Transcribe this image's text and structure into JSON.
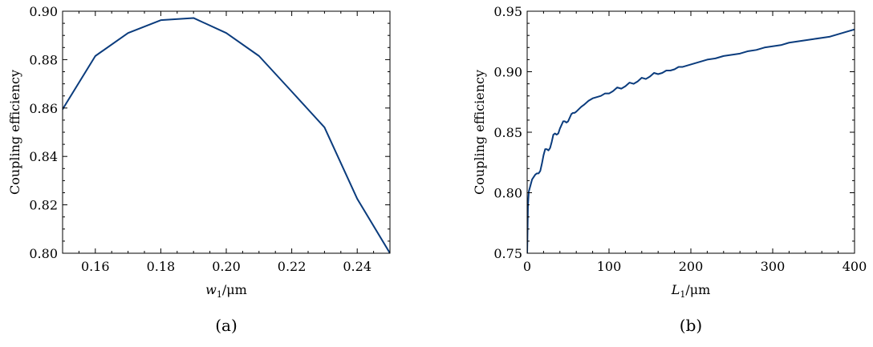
{
  "chart_data": [
    {
      "type": "line",
      "panel_label": "(a)",
      "xlabel": {
        "var": "w",
        "sub": "1",
        "unit": "/μm"
      },
      "ylabel": "Coupling efficiency",
      "xlim": [
        0.15,
        0.25
      ],
      "ylim": [
        0.8,
        0.9
      ],
      "xticks": [
        "0.16",
        "0.18",
        "0.20",
        "0.22",
        "0.24"
      ],
      "xtick_values": [
        0.16,
        0.18,
        0.2,
        0.22,
        0.24
      ],
      "xminor_step": 0.005,
      "yticks": [
        "0.80",
        "0.82",
        "0.84",
        "0.86",
        "0.88",
        "0.90"
      ],
      "ytick_values": [
        0.8,
        0.82,
        0.84,
        0.86,
        0.88,
        0.9
      ],
      "yminor_step": 0.005,
      "grid": false,
      "ticks_inward": true,
      "series": [
        {
          "color": "#0b3c7d",
          "x": [
            0.15,
            0.16,
            0.17,
            0.18,
            0.19,
            0.2,
            0.21,
            0.22,
            0.23,
            0.24,
            0.25
          ],
          "y": [
            0.8595,
            0.8815,
            0.891,
            0.8963,
            0.8972,
            0.891,
            0.8815,
            0.8668,
            0.852,
            0.8225,
            0.8
          ]
        }
      ]
    },
    {
      "type": "line",
      "panel_label": "(b)",
      "xlabel": {
        "var": "L",
        "sub": "1",
        "unit": "/μm"
      },
      "ylabel": "Coupling efficiency",
      "xlim": [
        0,
        400
      ],
      "ylim": [
        0.75,
        0.95
      ],
      "xticks": [
        "0",
        "100",
        "200",
        "300",
        "400"
      ],
      "xtick_values": [
        0,
        100,
        200,
        300,
        400
      ],
      "xminor_step": 20,
      "yticks": [
        "0.75",
        "0.80",
        "0.85",
        "0.90",
        "0.95"
      ],
      "ytick_values": [
        0.75,
        0.8,
        0.85,
        0.9,
        0.95
      ],
      "yminor_step": 0.01,
      "grid": false,
      "ticks_inward": true,
      "series": [
        {
          "color": "#0b3c7d",
          "x": [
            0,
            1,
            2,
            4,
            6,
            8,
            10,
            12,
            14,
            16,
            18,
            20,
            22,
            24,
            26,
            28,
            30,
            32,
            34,
            36,
            38,
            40,
            42,
            44,
            46,
            48,
            50,
            52,
            54,
            56,
            58,
            60,
            63,
            66,
            70,
            75,
            80,
            85,
            90,
            95,
            100,
            105,
            110,
            115,
            120,
            125,
            130,
            135,
            140,
            145,
            150,
            155,
            160,
            165,
            170,
            175,
            180,
            185,
            190,
            195,
            200,
            210,
            220,
            230,
            240,
            250,
            260,
            270,
            280,
            290,
            300,
            310,
            320,
            330,
            340,
            350,
            360,
            370,
            380,
            390,
            400
          ],
          "y": [
            0.75,
            0.79,
            0.801,
            0.806,
            0.811,
            0.813,
            0.815,
            0.816,
            0.816,
            0.818,
            0.824,
            0.831,
            0.836,
            0.836,
            0.835,
            0.837,
            0.842,
            0.848,
            0.849,
            0.848,
            0.849,
            0.853,
            0.856,
            0.859,
            0.859,
            0.858,
            0.859,
            0.862,
            0.865,
            0.866,
            0.866,
            0.867,
            0.869,
            0.871,
            0.873,
            0.876,
            0.878,
            0.879,
            0.88,
            0.882,
            0.882,
            0.884,
            0.887,
            0.886,
            0.888,
            0.891,
            0.89,
            0.892,
            0.895,
            0.894,
            0.896,
            0.899,
            0.898,
            0.899,
            0.901,
            0.901,
            0.902,
            0.904,
            0.904,
            0.905,
            0.906,
            0.908,
            0.91,
            0.911,
            0.913,
            0.914,
            0.915,
            0.917,
            0.918,
            0.92,
            0.921,
            0.922,
            0.924,
            0.925,
            0.926,
            0.927,
            0.928,
            0.929,
            0.931,
            0.933,
            0.935
          ]
        }
      ]
    }
  ]
}
